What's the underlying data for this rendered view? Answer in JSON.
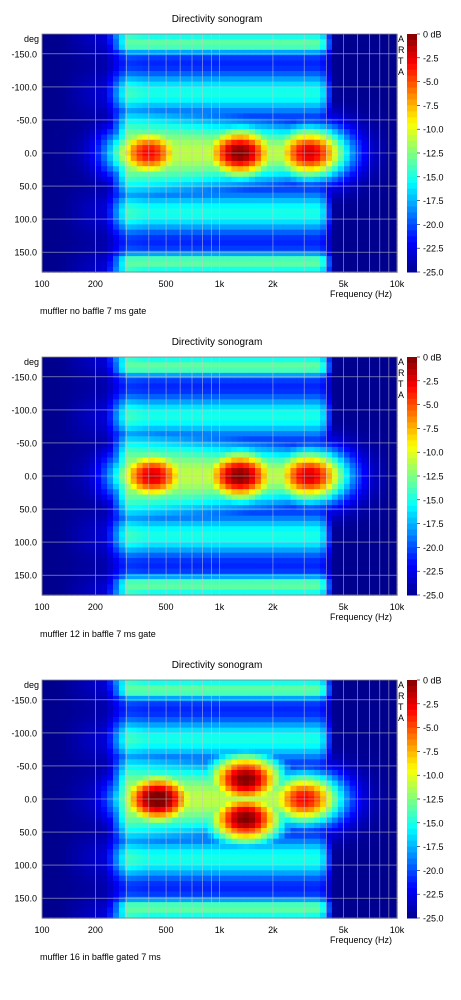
{
  "chart_data": [
    {
      "type": "heatmap",
      "title": "Directivity sonogram",
      "ylabel": "deg",
      "xlabel": "Frequency (Hz)",
      "x_scale": "log",
      "xlim": [
        100,
        10000
      ],
      "ylim": [
        180,
        -180
      ],
      "x_ticks": [
        100,
        200,
        500,
        1000,
        2000,
        5000,
        10000
      ],
      "x_tick_labels": [
        "100",
        "200",
        "500",
        "1k",
        "2k",
        "5k",
        "10k"
      ],
      "y_ticks": [
        -150,
        -100,
        -50,
        0,
        50,
        100,
        150
      ],
      "y_tick_labels": [
        "-150.0",
        "-100.0",
        "-50.0",
        "0.0",
        "50.0",
        "100.0",
        "150.0"
      ],
      "colorbar": {
        "labels": [
          "0 dB",
          "-2.5",
          "-5.0",
          "-7.5",
          "-10.0",
          "-12.5",
          "-15.0",
          "-17.5",
          "-20.0",
          "-22.5",
          "-25.0"
        ],
        "range": [
          -25,
          0
        ],
        "brand": [
          "A",
          "R",
          "T",
          "A"
        ]
      },
      "caption": "muffler no baffle 7 ms gate",
      "hot_spots": [
        {
          "f": 400,
          "deg": 0,
          "db": -4
        },
        {
          "f": 1300,
          "deg": 0,
          "db": -1
        },
        {
          "f": 3200,
          "deg": 0,
          "db": -3
        }
      ]
    },
    {
      "type": "heatmap",
      "title": "Directivity sonogram",
      "ylabel": "deg",
      "xlabel": "Frequency (Hz)",
      "x_scale": "log",
      "xlim": [
        100,
        10000
      ],
      "ylim": [
        180,
        -180
      ],
      "x_ticks": [
        100,
        200,
        500,
        1000,
        2000,
        5000,
        10000
      ],
      "x_tick_labels": [
        "100",
        "200",
        "500",
        "1k",
        "2k",
        "5k",
        "10k"
      ],
      "y_ticks": [
        -150,
        -100,
        -50,
        0,
        50,
        100,
        150
      ],
      "y_tick_labels": [
        "-150.0",
        "-100.0",
        "-50.0",
        "0.0",
        "50.0",
        "100.0",
        "150.0"
      ],
      "colorbar": {
        "labels": [
          "0 dB",
          "-2.5",
          "-5.0",
          "-7.5",
          "-10.0",
          "-12.5",
          "-15.0",
          "-17.5",
          "-20.0",
          "-22.5",
          "-25.0"
        ],
        "range": [
          -25,
          0
        ],
        "brand": [
          "A",
          "R",
          "T",
          "A"
        ]
      },
      "caption": "muffler 12 in baffle 7 ms gate",
      "hot_spots": [
        {
          "f": 420,
          "deg": 0,
          "db": -3
        },
        {
          "f": 1300,
          "deg": 0,
          "db": -1
        },
        {
          "f": 3200,
          "deg": 0,
          "db": -3
        }
      ]
    },
    {
      "type": "heatmap",
      "title": "Directivity sonogram",
      "ylabel": "deg",
      "xlabel": "Frequency (Hz)",
      "x_scale": "log",
      "xlim": [
        100,
        10000
      ],
      "ylim": [
        180,
        -180
      ],
      "x_ticks": [
        100,
        200,
        500,
        1000,
        2000,
        5000,
        10000
      ],
      "x_tick_labels": [
        "100",
        "200",
        "500",
        "1k",
        "2k",
        "5k",
        "10k"
      ],
      "y_ticks": [
        -150,
        -100,
        -50,
        0,
        50,
        100,
        150
      ],
      "y_tick_labels": [
        "-150.0",
        "-100.0",
        "-50.0",
        "0.0",
        "50.0",
        "100.0",
        "150.0"
      ],
      "colorbar": {
        "labels": [
          "0 dB",
          "-2.5",
          "-5.0",
          "-7.5",
          "-10.0",
          "-12.5",
          "-15.0",
          "-17.5",
          "-20.0",
          "-22.5",
          "-25.0"
        ],
        "range": [
          -25,
          0
        ],
        "brand": [
          "A",
          "R",
          "T",
          "A"
        ]
      },
      "caption": "muffler 16 in baffle gated 7 ms",
      "hot_spots": [
        {
          "f": 450,
          "deg": 0,
          "db": 0
        },
        {
          "f": 1400,
          "deg": -30,
          "db": -1
        },
        {
          "f": 1400,
          "deg": 30,
          "db": -1
        },
        {
          "f": 3000,
          "deg": 0,
          "db": -4
        }
      ]
    }
  ],
  "colors": {
    "colormap": [
      "#00008f",
      "#0000ff",
      "#0080ff",
      "#00ffff",
      "#80ff80",
      "#ffff00",
      "#ff8000",
      "#ff0000",
      "#800000"
    ],
    "grid": "#c8c8c8",
    "background": "#ffffff"
  }
}
